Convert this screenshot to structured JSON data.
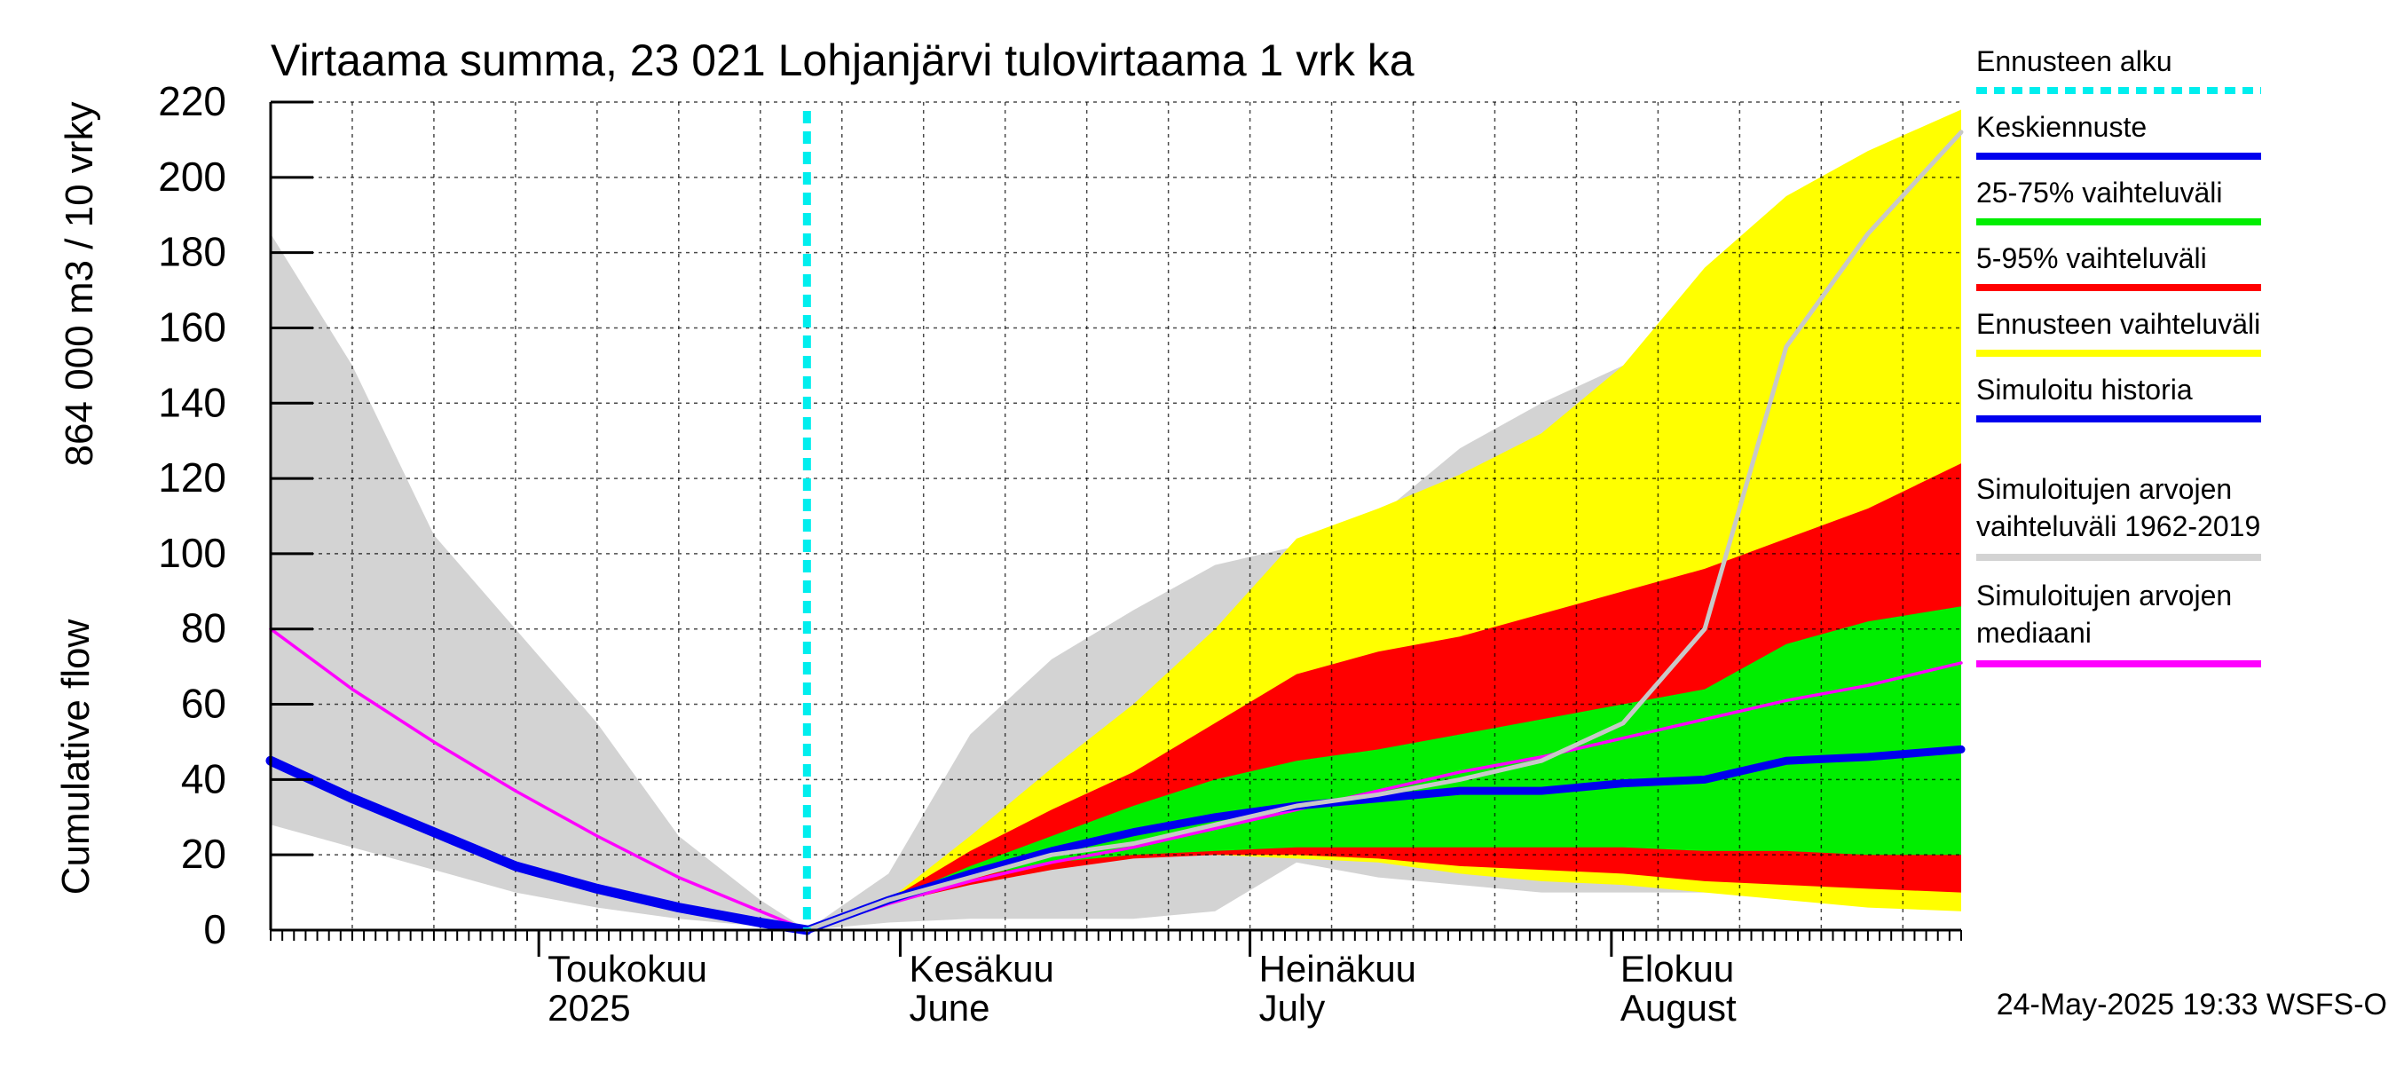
{
  "chart_data": {
    "type": "area",
    "title": "Virtaama summa, 23 021 Lohjanjärvi tulovirtaama 1 vrk ka",
    "ylabel_top": "864 000 m3 / 10 vrky",
    "ylabel_bottom": "Cumulative flow",
    "ylim": [
      0,
      220
    ],
    "yticks": [
      0,
      20,
      40,
      60,
      80,
      100,
      120,
      140,
      160,
      180,
      200,
      220
    ],
    "xlim": [
      "2025-04-08",
      "2025-08-31"
    ],
    "grid": true,
    "legend_position": "right",
    "forecast_start": "2025-05-24",
    "month_labels": [
      {
        "date": "2025-05-01",
        "line1": "Toukokuu",
        "line2": "2025"
      },
      {
        "date": "2025-06-01",
        "line1": "Kesäkuu",
        "line2": "June"
      },
      {
        "date": "2025-07-01",
        "line1": "Heinäkuu",
        "line2": "July"
      },
      {
        "date": "2025-08-01",
        "line1": "Elokuu",
        "line2": "August"
      }
    ],
    "x_dates": [
      "2025-04-08",
      "2025-04-15",
      "2025-04-22",
      "2025-04-29",
      "2025-05-06",
      "2025-05-13",
      "2025-05-20",
      "2025-05-24",
      "2025-05-31",
      "2025-06-07",
      "2025-06-14",
      "2025-06-21",
      "2025-06-28",
      "2025-07-05",
      "2025-07-12",
      "2025-07-19",
      "2025-07-26",
      "2025-08-02",
      "2025-08-09",
      "2025-08-16",
      "2025-08-23",
      "2025-08-31"
    ],
    "series": [
      {
        "name": "Simuloitujen arvojen vaihteluväli 1962-2019",
        "kind": "band",
        "color": "#d3d3d3",
        "lower": [
          28,
          22,
          16,
          10,
          6,
          3,
          1,
          0,
          2,
          3,
          3,
          3,
          5,
          18,
          14,
          12,
          10,
          10,
          10,
          10,
          12,
          14
        ],
        "upper": [
          185,
          150,
          105,
          80,
          55,
          25,
          8,
          0,
          15,
          52,
          72,
          85,
          97,
          102,
          110,
          128,
          140,
          150,
          158,
          176,
          192,
          212
        ]
      },
      {
        "name": "Ennusteen vaihteluväli",
        "kind": "band",
        "color": "#ffff00",
        "lower": [
          null,
          null,
          null,
          null,
          null,
          null,
          null,
          0,
          8,
          14,
          18,
          20,
          20,
          19,
          18,
          15,
          13,
          12,
          10,
          8,
          6,
          5
        ],
        "upper": [
          null,
          null,
          null,
          null,
          null,
          null,
          null,
          0,
          8,
          25,
          43,
          60,
          80,
          104,
          112,
          121,
          132,
          150,
          176,
          195,
          207,
          218
        ]
      },
      {
        "name": "5-95% vaihteluväli",
        "kind": "band",
        "color": "#ff0000",
        "lower": [
          null,
          null,
          null,
          null,
          null,
          null,
          null,
          0,
          7,
          12,
          16,
          19,
          20,
          20,
          19,
          17,
          16,
          15,
          13,
          12,
          11,
          10
        ],
        "upper": [
          null,
          null,
          null,
          null,
          null,
          null,
          null,
          0,
          8,
          21,
          32,
          42,
          55,
          68,
          74,
          78,
          84,
          90,
          96,
          104,
          112,
          124
        ]
      },
      {
        "name": "25-75% vaihteluväli",
        "kind": "band",
        "color": "#00ee00",
        "lower": [
          null,
          null,
          null,
          null,
          null,
          null,
          null,
          0,
          8,
          14,
          18,
          20,
          21,
          22,
          22,
          22,
          22,
          22,
          21,
          21,
          20,
          20
        ],
        "upper": [
          null,
          null,
          null,
          null,
          null,
          null,
          null,
          0,
          8,
          17,
          25,
          33,
          40,
          45,
          48,
          52,
          56,
          60,
          64,
          76,
          82,
          86
        ]
      },
      {
        "name": "Simuloitujen arvojen mediaani",
        "kind": "line",
        "color": "#ff00ff",
        "values": [
          80,
          64,
          50,
          37,
          25,
          14,
          5,
          0,
          7,
          13,
          18,
          22,
          27,
          32,
          37,
          42,
          46,
          51,
          56,
          61,
          65,
          71
        ]
      },
      {
        "name": "Simuloitu historia",
        "kind": "line",
        "color": "#0000ee",
        "values": [
          45,
          35,
          26,
          17,
          11,
          6,
          2,
          0,
          null,
          null,
          null,
          null,
          null,
          null,
          null,
          null,
          null,
          null,
          null,
          null,
          null,
          null
        ]
      },
      {
        "name": "Keskiennuste",
        "kind": "line",
        "color": "#0000ee",
        "values": [
          null,
          null,
          null,
          null,
          null,
          null,
          null,
          0,
          8,
          15,
          21,
          26,
          30,
          33,
          35,
          37,
          37,
          39,
          40,
          45,
          46,
          48
        ]
      },
      {
        "name": "Simuloitujen arvojen mediaani (light)",
        "kind": "line",
        "color": "#c8c8c8",
        "values": [
          null,
          null,
          null,
          null,
          null,
          null,
          null,
          0,
          8,
          14,
          20,
          23,
          28,
          33,
          36,
          40,
          45,
          55,
          80,
          155,
          185,
          212
        ]
      }
    ],
    "legend": [
      {
        "label": "Ennusteen alku",
        "color": "#00eeee",
        "style": "dashed"
      },
      {
        "label": "Keskiennuste",
        "color": "#0000ee",
        "style": "solid"
      },
      {
        "label": "25-75% vaihteluväli",
        "color": "#00ee00",
        "style": "solid"
      },
      {
        "label": "5-95% vaihteluväli",
        "color": "#ff0000",
        "style": "solid"
      },
      {
        "label": "Ennusteen vaihteluväli",
        "color": "#ffff00",
        "style": "solid"
      },
      {
        "label": "Simuloitu historia",
        "color": "#0000ee",
        "style": "solid"
      },
      {
        "label": "Simuloitujen arvojen vaihteluväli 1962-2019",
        "line1": "Simuloitujen arvojen",
        "line2": "vaihteluväli 1962-2019",
        "color": "#d3d3d3",
        "style": "solid"
      },
      {
        "label": "Simuloitujen arvojen mediaani",
        "line1": "Simuloitujen arvojen",
        "line2": "mediaani",
        "color": "#ff00ff",
        "style": "solid"
      }
    ],
    "footer": "24-May-2025 19:33 WSFS-O"
  }
}
